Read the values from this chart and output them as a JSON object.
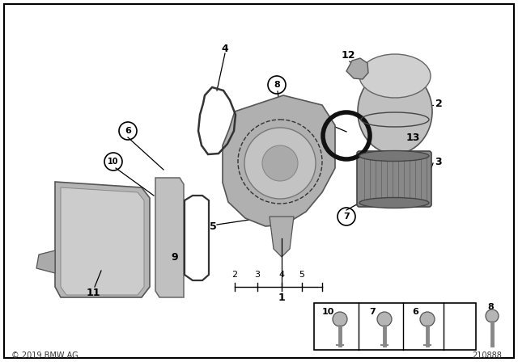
{
  "bg_color": "#ffffff",
  "border_color": "#000000",
  "copyright": "© 2019 BMW AG",
  "part_number": "210888",
  "callout_circles": [
    "6",
    "7",
    "8",
    "10"
  ]
}
